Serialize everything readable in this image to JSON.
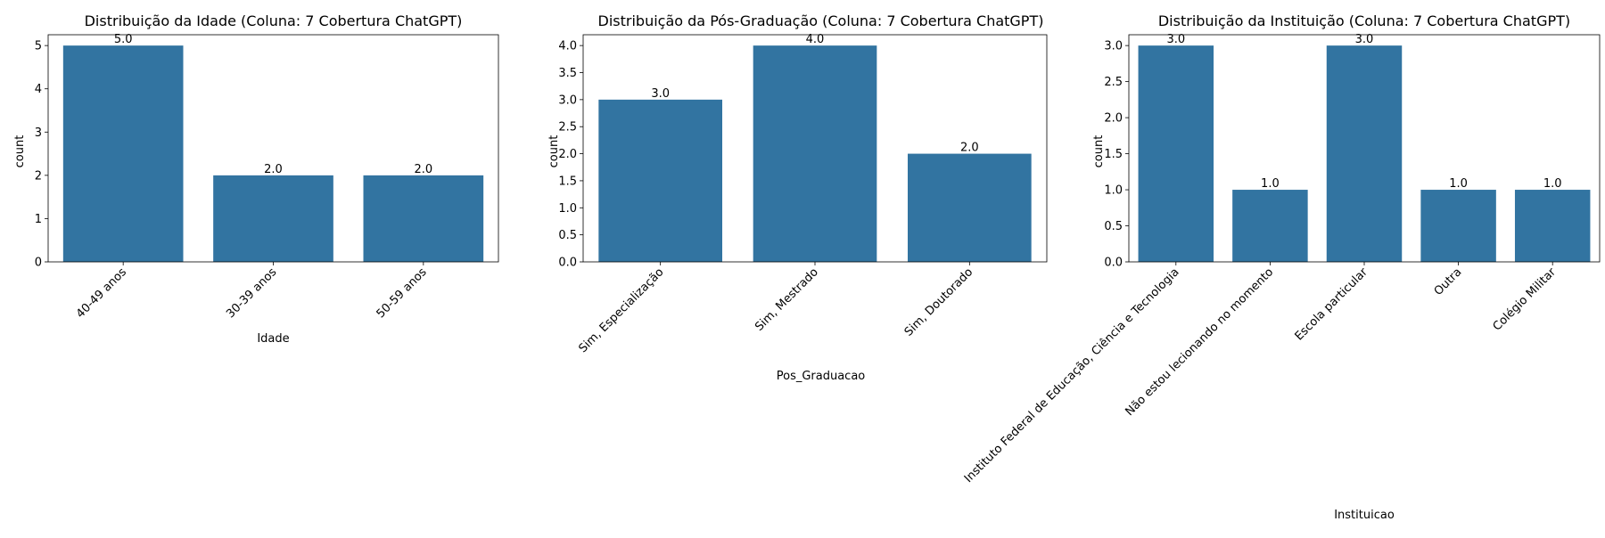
{
  "charts": [
    {
      "type": "bar",
      "title": "Distribuição da Idade (Coluna: 7 Cobertura ChatGPT)",
      "xlabel": "Idade",
      "ylabel": "count",
      "categories": [
        "40-49 anos",
        "30-39 anos",
        "50-59 anos"
      ],
      "values": [
        5,
        2,
        2
      ],
      "value_labels": [
        "5.0",
        "2.0",
        "2.0"
      ],
      "ylim": [
        0,
        5.25
      ],
      "yticks": [
        0,
        1,
        2,
        3,
        4,
        5
      ],
      "ytick_labels": [
        "0",
        "1",
        "2",
        "3",
        "4",
        "5"
      ],
      "bar_color": "#3274a1"
    },
    {
      "type": "bar",
      "title": "Distribuição da Pós-Graduação (Coluna: 7 Cobertura ChatGPT)",
      "xlabel": "Pos_Graduacao",
      "ylabel": "count",
      "categories": [
        "Sim, Especialização",
        "Sim, Mestrado",
        "Sim, Doutorado"
      ],
      "values": [
        3,
        4,
        2
      ],
      "value_labels": [
        "3.0",
        "4.0",
        "2.0"
      ],
      "ylim": [
        0,
        4.2
      ],
      "yticks": [
        0,
        0.5,
        1,
        1.5,
        2,
        2.5,
        3,
        3.5,
        4
      ],
      "ytick_labels": [
        "0.0",
        "0.5",
        "1.0",
        "1.5",
        "2.0",
        "2.5",
        "3.0",
        "3.5",
        "4.0"
      ],
      "bar_color": "#3274a1"
    },
    {
      "type": "bar",
      "title": "Distribuição da Instituição (Coluna: 7 Cobertura ChatGPT)",
      "xlabel": "Instituicao",
      "ylabel": "count",
      "categories": [
        "Instituto Federal de Educação, Ciência e Tecnologia",
        "Não estou lecionando no momento",
        "Escola particular",
        "Outra",
        "Colégio Militar"
      ],
      "values": [
        3,
        1,
        3,
        1,
        1
      ],
      "value_labels": [
        "3.0",
        "1.0",
        "3.0",
        "1.0",
        "1.0"
      ],
      "ylim": [
        0,
        3.15
      ],
      "yticks": [
        0,
        0.5,
        1,
        1.5,
        2,
        2.5,
        3
      ],
      "ytick_labels": [
        "0.0",
        "0.5",
        "1.0",
        "1.5",
        "2.0",
        "2.5",
        "3.0"
      ],
      "bar_color": "#3274a1"
    }
  ]
}
